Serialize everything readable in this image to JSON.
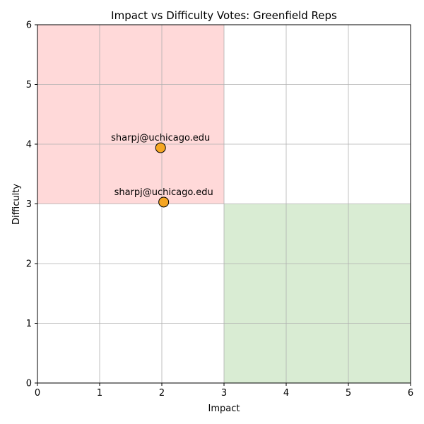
{
  "chart_data": {
    "type": "scatter",
    "title": "Impact vs Difficulty Votes: Greenfield Reps",
    "xlabel": "Impact",
    "ylabel": "Difficulty",
    "xlim": [
      0,
      6
    ],
    "ylim": [
      0,
      6
    ],
    "xticks": [
      0,
      1,
      2,
      3,
      4,
      5,
      6
    ],
    "yticks": [
      0,
      1,
      2,
      3,
      4,
      5,
      6
    ],
    "grid": true,
    "regions": [
      {
        "x": [
          0,
          3
        ],
        "y": [
          3,
          6
        ],
        "color": "#ffb3b3"
      },
      {
        "x": [
          3,
          6
        ],
        "y": [
          0,
          3
        ],
        "color": "#b3d9a8"
      }
    ],
    "series": [
      {
        "color": "#f5a623",
        "points": [
          {
            "x": 1.98,
            "y": 3.94,
            "label": "sharpj@uchicago.edu"
          },
          {
            "x": 2.03,
            "y": 3.03,
            "label": "sharpj@uchicago.edu"
          }
        ]
      }
    ]
  }
}
